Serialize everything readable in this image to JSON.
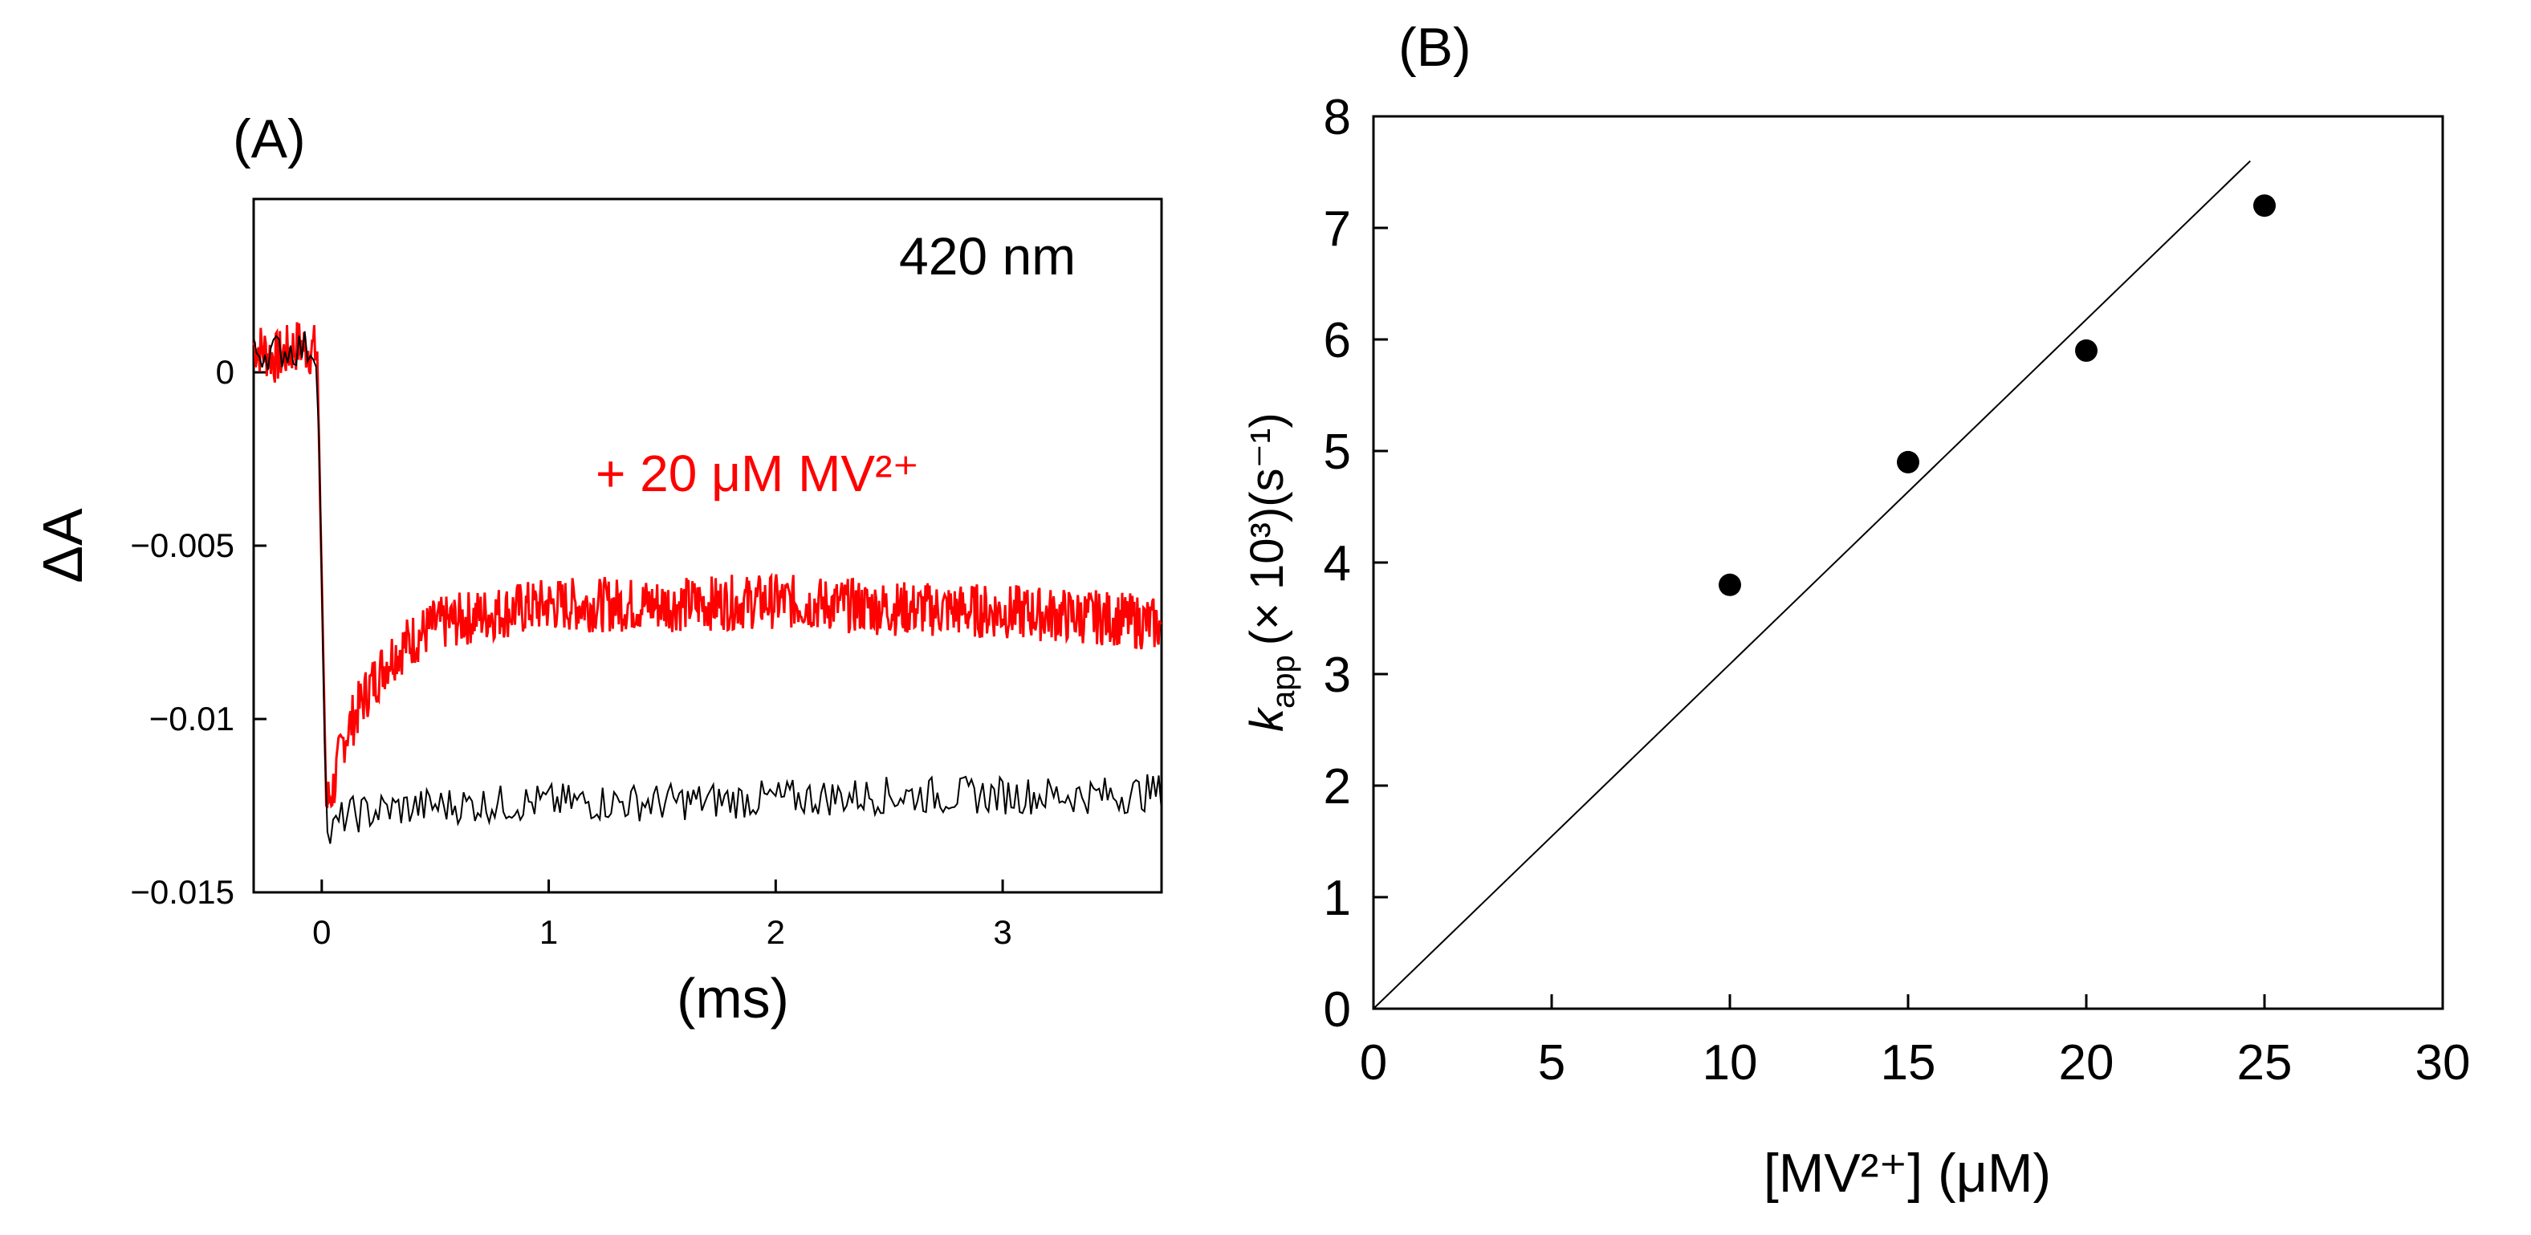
{
  "chart_data": [
    {
      "panel": "(A)",
      "type": "line",
      "annotation_wavelength": "420 nm",
      "xlabel": "(ms)",
      "ylabel": "ΔA",
      "xlim": [
        -0.3,
        3.7
      ],
      "ylim": [
        -0.015,
        0.005
      ],
      "x_ticks": [
        0,
        1,
        2,
        3
      ],
      "x_tick_labels": [
        "0",
        "1",
        "2",
        "3"
      ],
      "y_ticks": [
        0,
        -0.005,
        -0.01,
        -0.015
      ],
      "y_tick_labels": [
        "0",
        "−0.005",
        "−0.01",
        "−0.015"
      ],
      "series": [
        {
          "label": "+ 20 μM MV²⁺",
          "color": "#ff0000",
          "description_points": {
            "pre_zero": 0.0005,
            "min_at": [
              0.02,
              -0.0125
            ],
            "plateau": -0.0069
          },
          "x": [
            -0.3,
            -0.2,
            -0.1,
            -0.02,
            0.0,
            0.02,
            0.05,
            0.1,
            0.2,
            0.3,
            0.4,
            0.5,
            0.7,
            1.0,
            1.5,
            2.0,
            2.5,
            3.0,
            3.5,
            3.7
          ],
          "y": [
            0.0008,
            0.0004,
            0.0008,
            0.0006,
            -0.006,
            -0.0125,
            -0.012,
            -0.0105,
            -0.0092,
            -0.0082,
            -0.0077,
            -0.0073,
            -0.007,
            -0.0067,
            -0.0067,
            -0.0066,
            -0.0068,
            -0.0069,
            -0.0071,
            -0.0073
          ]
        },
        {
          "label": "",
          "color": "#000000",
          "x": [
            -0.3,
            -0.2,
            -0.1,
            -0.02,
            0.0,
            0.02,
            0.1,
            0.3,
            0.5,
            1.0,
            1.5,
            2.0,
            2.5,
            3.0,
            3.5,
            3.7
          ],
          "y": [
            0.0006,
            0.0006,
            0.0007,
            0.0007,
            -0.006,
            -0.0135,
            -0.0128,
            -0.0126,
            -0.0125,
            -0.0124,
            -0.0124,
            -0.0123,
            -0.0122,
            -0.0122,
            -0.0122,
            -0.0121
          ]
        }
      ]
    },
    {
      "panel": "(B)",
      "type": "scatter",
      "xlabel": "[MV²⁺] (μM)",
      "ylabel_main": "k",
      "ylabel_sub": "app",
      "ylabel_rest": "(× 10³)(s⁻¹)",
      "xlim": [
        0,
        30
      ],
      "ylim": [
        0,
        8
      ],
      "x_ticks": [
        0,
        5,
        10,
        15,
        20,
        25,
        30
      ],
      "x_tick_labels": [
        "0",
        "5",
        "10",
        "15",
        "20",
        "25",
        "30"
      ],
      "y_ticks": [
        0,
        1,
        2,
        3,
        4,
        5,
        6,
        7,
        8
      ],
      "y_tick_labels": [
        "0",
        "1",
        "2",
        "3",
        "4",
        "5",
        "6",
        "7",
        "8"
      ],
      "points": {
        "x": [
          10,
          15,
          20,
          25
        ],
        "y": [
          3.8,
          4.9,
          5.9,
          7.2
        ]
      },
      "fit_line": {
        "x": [
          0,
          24.6
        ],
        "y": [
          0,
          7.6
        ]
      }
    }
  ]
}
